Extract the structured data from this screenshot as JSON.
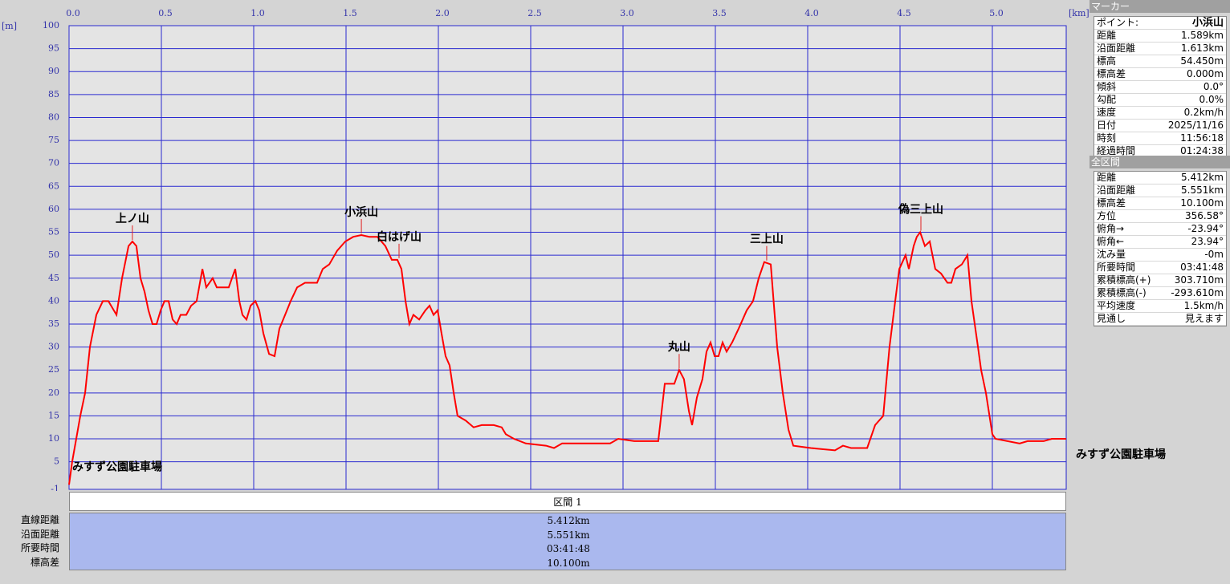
{
  "chart_data": {
    "type": "line",
    "x_label": "[km]",
    "y_label": "[m]",
    "color": "#ff0000",
    "grid": true,
    "xlim": [
      0,
      5.4
    ],
    "xticks": [
      {
        "value": 0,
        "label": "0.0"
      },
      0.5,
      {
        "value": 1,
        "label": "1.0"
      },
      1.5,
      {
        "value": 2,
        "label": "2.0"
      },
      2.5,
      {
        "value": 3,
        "label": "3.0"
      },
      3.5,
      {
        "value": 4,
        "label": "4.0"
      },
      4.5,
      {
        "value": 5,
        "label": "5.0"
      }
    ],
    "ylim": [
      -1,
      100
    ],
    "yticks": [
      -1,
      5,
      10,
      15,
      20,
      25,
      30,
      35,
      40,
      45,
      50,
      55,
      60,
      65,
      70,
      75,
      80,
      85,
      90,
      95,
      100
    ],
    "x": [
      0,
      0.017,
      0.061,
      0.087,
      0.113,
      0.148,
      0.183,
      0.213,
      0.257,
      0.287,
      0.322,
      0.343,
      0.365,
      0.387,
      0.409,
      0.43,
      0.452,
      0.474,
      0.496,
      0.517,
      0.539,
      0.561,
      0.583,
      0.604,
      0.635,
      0.661,
      0.691,
      0.722,
      0.743,
      0.778,
      0.8,
      0.865,
      0.9,
      0.922,
      0.939,
      0.961,
      0.983,
      1.009,
      1.03,
      1.052,
      1.083,
      1.113,
      1.139,
      1.17,
      1.2,
      1.235,
      1.278,
      1.343,
      1.374,
      1.409,
      1.452,
      1.496,
      1.539,
      1.583,
      1.626,
      1.67,
      1.713,
      1.748,
      1.778,
      1.8,
      1.822,
      1.843,
      1.865,
      1.896,
      1.93,
      1.952,
      1.974,
      1.996,
      2.017,
      2.039,
      2.061,
      2.083,
      2.104,
      2.148,
      2.191,
      2.235,
      2.3,
      2.343,
      2.365,
      2.409,
      2.474,
      2.583,
      2.626,
      2.67,
      2.757,
      2.93,
      2.974,
      3.061,
      3.191,
      3.226,
      3.278,
      3.304,
      3.33,
      3.357,
      3.374,
      3.4,
      3.43,
      3.452,
      3.474,
      3.496,
      3.517,
      3.539,
      3.561,
      3.591,
      3.626,
      3.67,
      3.704,
      3.735,
      3.765,
      3.8,
      3.835,
      3.865,
      3.896,
      3.922,
      4.017,
      4.148,
      4.191,
      4.235,
      4.322,
      4.365,
      4.409,
      4.443,
      4.474,
      4.496,
      4.53,
      4.548,
      4.574,
      4.591,
      4.609,
      4.635,
      4.661,
      4.691,
      4.722,
      4.757,
      4.778,
      4.8,
      4.835,
      4.865,
      4.887,
      4.922,
      4.939,
      4.965,
      5.0,
      5.017,
      5.148,
      5.191,
      5.278,
      5.322,
      5.4
    ],
    "values": [
      0,
      5,
      15,
      20,
      30,
      37,
      40,
      40,
      37,
      45,
      52,
      53,
      52,
      45,
      42,
      38,
      35,
      35,
      38,
      40,
      40,
      36,
      35,
      37,
      37,
      39,
      40,
      47,
      43,
      45,
      43,
      43,
      47,
      40,
      37,
      36,
      39,
      40,
      38,
      33,
      28.5,
      28,
      34,
      37,
      40,
      43,
      44,
      44,
      47,
      48,
      51,
      53,
      54,
      54.4,
      54,
      54,
      52,
      49,
      49,
      47,
      40,
      35,
      37,
      36,
      38,
      39,
      37,
      38,
      33,
      28,
      26,
      20,
      15,
      14,
      12.5,
      13,
      13,
      12.5,
      11,
      10,
      9,
      8.5,
      8,
      9,
      9,
      9,
      10,
      9.5,
      9.5,
      22,
      22,
      25,
      23,
      16,
      13,
      19,
      23,
      29,
      31,
      28,
      28,
      31,
      29,
      31,
      34,
      38,
      40,
      45,
      48.5,
      48,
      30,
      20,
      12,
      8.5,
      8,
      7.5,
      8.5,
      8,
      8,
      13,
      15,
      30,
      40,
      47,
      50,
      47,
      52,
      54,
      55,
      52,
      53,
      47,
      46,
      44,
      44,
      47,
      48,
      50,
      40,
      30,
      25,
      20,
      11,
      10,
      9,
      9.5,
      9.5,
      10,
      10
    ],
    "annotations": [
      {
        "text": "上ノ山",
        "x": 0.343,
        "y": 53,
        "position": "above"
      },
      {
        "text": "小浜山",
        "x": 1.583,
        "y": 54.4,
        "position": "above"
      },
      {
        "text": "白はげ山",
        "x": 1.787,
        "y": 49,
        "position": "above"
      },
      {
        "text": "丸山",
        "x": 3.304,
        "y": 25,
        "position": "above"
      },
      {
        "text": "三上山",
        "x": 3.778,
        "y": 48.5,
        "position": "above"
      },
      {
        "text": "偽三上山",
        "x": 4.613,
        "y": 55,
        "position": "above"
      },
      {
        "text": "みすず公園駐車場",
        "x": 0,
        "y": 0,
        "position": "inside"
      },
      {
        "text": "みすず公園駐車場",
        "x": 5.4,
        "y": 10,
        "position": "right"
      }
    ]
  },
  "marker_panel": {
    "title": "マーカー",
    "rows": [
      [
        "ポイント:",
        "小浜山"
      ],
      [
        "距離",
        "1.589km"
      ],
      [
        "沿面距離",
        "1.613km"
      ],
      [
        "標高",
        "54.450m"
      ],
      [
        "標高差",
        "0.000m"
      ],
      [
        "傾斜",
        "0.0°"
      ],
      [
        "勾配",
        "0.0%"
      ],
      [
        "速度",
        "0.2km/h"
      ],
      [
        "日付",
        "2025/11/16"
      ],
      [
        "時刻",
        "11:56:18"
      ],
      [
        "経過時間",
        "01:24:38"
      ]
    ]
  },
  "section_panel": {
    "title": "全区間",
    "rows": [
      [
        "距離",
        "5.412km"
      ],
      [
        "沿面距離",
        "5.551km"
      ],
      [
        "標高差",
        "10.100m"
      ],
      [
        "方位",
        "356.58°"
      ],
      [
        "俯角→",
        "-23.94°"
      ],
      [
        "俯角←",
        "23.94°"
      ],
      [
        "沈み量",
        "-0m"
      ],
      [
        "所要時間",
        "03:41:48"
      ],
      [
        "累積標高(+)",
        "303.710m"
      ],
      [
        "累積標高(-)",
        "-293.610m"
      ],
      [
        "平均速度",
        "1.5km/h"
      ],
      [
        "見通し",
        "見えます"
      ]
    ]
  },
  "segment_table": {
    "title": "区間 1",
    "rows": [
      [
        "直線距離",
        "5.412km"
      ],
      [
        "沿面距離",
        "5.551km"
      ],
      [
        "所要時間",
        "03:41:48"
      ],
      [
        "標高差",
        "10.100m"
      ]
    ]
  }
}
